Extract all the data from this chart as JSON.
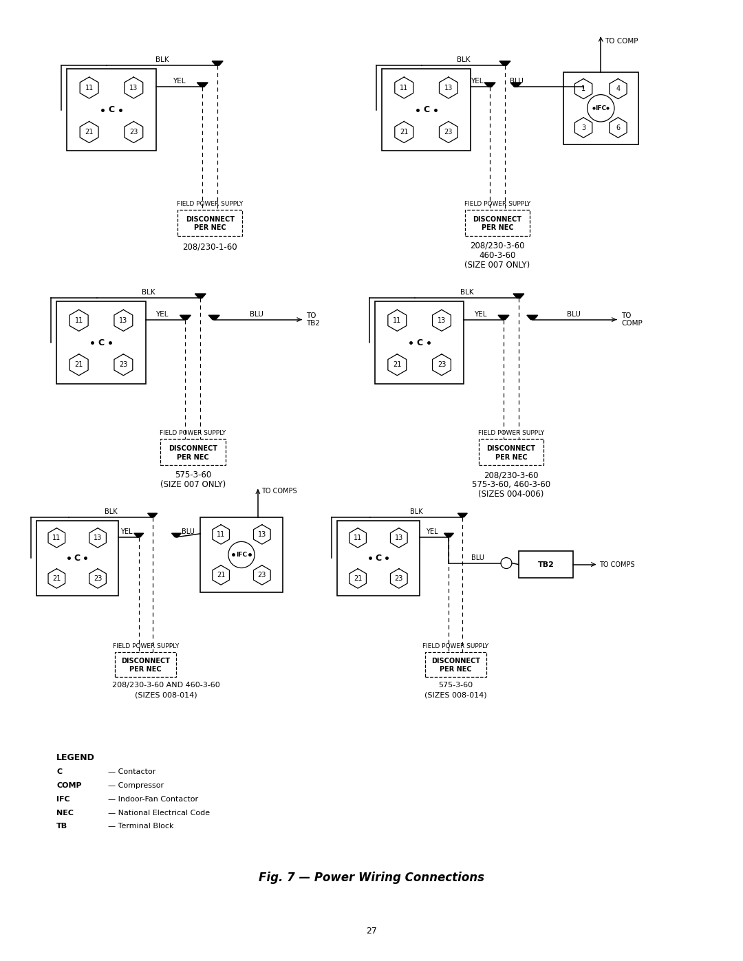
{
  "title": "Fig. 7 — Power Wiring Connections",
  "page_number": "27",
  "background_color": "#ffffff",
  "legend_title": "LEGEND",
  "legend_entries": [
    {
      "key": "C",
      "desc": "— Contactor"
    },
    {
      "key": "COMP",
      "desc": "— Compressor"
    },
    {
      "key": "IFC",
      "desc": "— Indoor-Fan Contactor"
    },
    {
      "key": "NEC",
      "desc": "— National Electrical Code"
    },
    {
      "key": "TB",
      "desc": "— Terminal Block"
    }
  ],
  "row1_left_label": "208/230-1-60",
  "row1_right_label1": "208/230-3-60",
  "row1_right_label2": "460-3-60",
  "row1_right_label3": "(SIZE 007 ONLY)",
  "row2_left_label1": "575-3-60",
  "row2_left_label2": "(SIZE 007 ONLY)",
  "row2_right_label1": "208/230-3-60",
  "row2_right_label2": "575-3-60, 460-3-60",
  "row2_right_label3": "(SIZES 004-006)",
  "row3_left_label1": "208/230-3-60 AND 460-3-60",
  "row3_left_label2": "(SIZES 008-014)",
  "row3_right_label1": "575-3-60",
  "row3_right_label2": "(SIZES 008-014)"
}
